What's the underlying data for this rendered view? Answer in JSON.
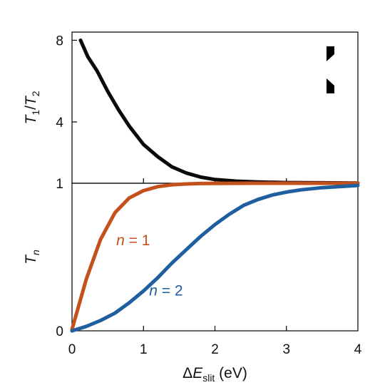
{
  "chart_data": [
    {
      "type": "line",
      "panel": "top",
      "ylabel": {
        "main": "T",
        "sub1": "1",
        "slash": "/",
        "main2": "T",
        "sub2": "2"
      },
      "xlim": [
        0,
        4
      ],
      "ylim": [
        1,
        8.4
      ],
      "yticks": [
        {
          "value": 8,
          "label": "8"
        },
        {
          "value": 4,
          "label": "4"
        },
        {
          "value": 1,
          "label": "1"
        }
      ],
      "series": [
        {
          "color": "#0a0a0a",
          "x": [
            0.12,
            0.22,
            0.35,
            0.5,
            0.65,
            0.8,
            1.0,
            1.2,
            1.4,
            1.6,
            1.8,
            2.0,
            2.3,
            2.6,
            3.0,
            3.5,
            4.0
          ],
          "y": [
            8.0,
            7.2,
            6.5,
            5.5,
            4.6,
            3.8,
            2.9,
            2.3,
            1.8,
            1.5,
            1.3,
            1.18,
            1.1,
            1.06,
            1.03,
            1.02,
            1.01
          ]
        }
      ]
    },
    {
      "type": "line",
      "panel": "bottom",
      "ylabel": {
        "main": "T",
        "sub": "n"
      },
      "xlabel": {
        "prefix": "ΔE",
        "sub": "slit",
        "suffix": " (eV)"
      },
      "xlim": [
        0,
        4
      ],
      "ylim": [
        0,
        1
      ],
      "xticks": [
        {
          "value": 0,
          "label": "0"
        },
        {
          "value": 1,
          "label": "1"
        },
        {
          "value": 2,
          "label": "2"
        },
        {
          "value": 3,
          "label": "3"
        },
        {
          "value": 4,
          "label": "4"
        }
      ],
      "yticks": [
        {
          "value": 0,
          "label": "0"
        }
      ],
      "series": [
        {
          "name": "n = 1",
          "name_var": "n",
          "name_rest": " = 1",
          "color": "#c4501c",
          "x": [
            0,
            0.2,
            0.4,
            0.6,
            0.8,
            1.0,
            1.2,
            1.4,
            1.6,
            1.8,
            2.0,
            2.5,
            3.0,
            4.0
          ],
          "y": [
            0.01,
            0.35,
            0.62,
            0.8,
            0.9,
            0.95,
            0.977,
            0.99,
            0.995,
            0.998,
            0.999,
            1.0,
            1.0,
            1.0
          ]
        },
        {
          "name": "n = 2",
          "name_var": "n",
          "name_rest": " = 2",
          "color": "#1f5fa0",
          "x": [
            0,
            0.2,
            0.4,
            0.6,
            0.8,
            1.0,
            1.2,
            1.4,
            1.6,
            1.8,
            2.0,
            2.2,
            2.4,
            2.6,
            2.8,
            3.0,
            3.2,
            3.5,
            4.0
          ],
          "y": [
            0.0,
            0.03,
            0.07,
            0.12,
            0.19,
            0.27,
            0.36,
            0.46,
            0.55,
            0.64,
            0.72,
            0.79,
            0.85,
            0.89,
            0.92,
            0.94,
            0.955,
            0.97,
            0.985
          ]
        }
      ]
    }
  ]
}
